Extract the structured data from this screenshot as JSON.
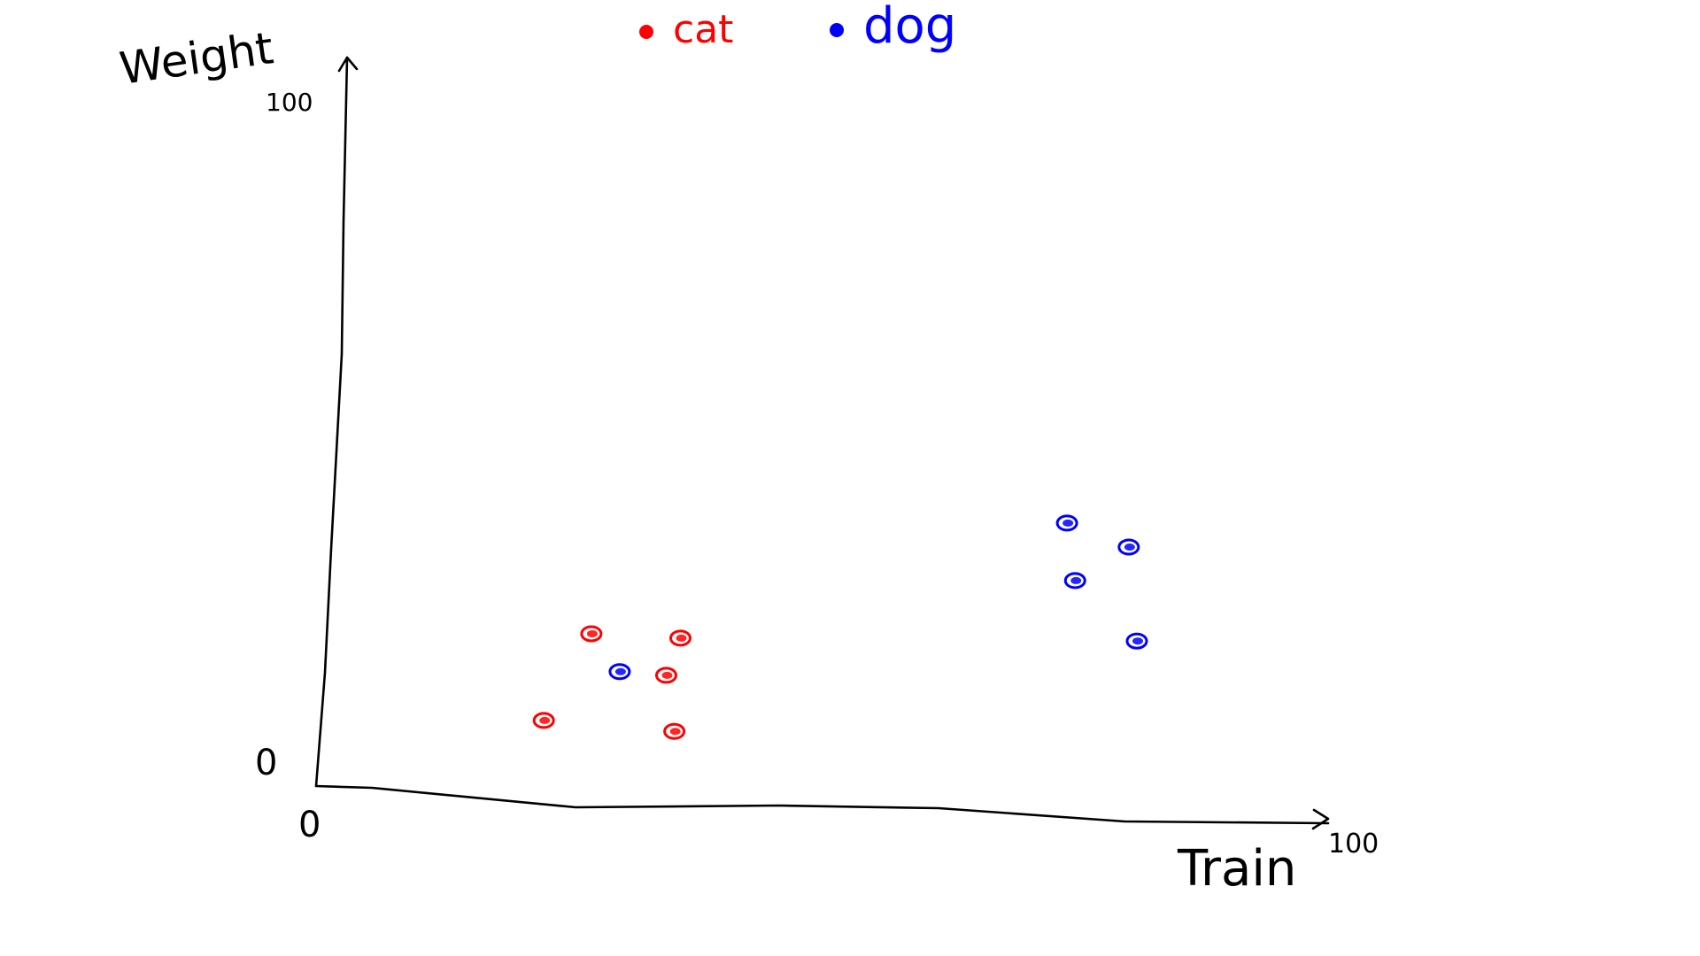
{
  "chart_data": {
    "type": "scatter",
    "title": "",
    "xlabel": "Train",
    "ylabel": "Weight",
    "xlim": [
      0,
      100
    ],
    "ylim": [
      0,
      100
    ],
    "x_ticks": [
      "0",
      "100"
    ],
    "y_ticks": [
      "0",
      "100"
    ],
    "grid": false,
    "legend_position": "top-center",
    "series": [
      {
        "name": "cat",
        "color": "#ff0000",
        "points": [
          {
            "x": 27.2,
            "y": 20.9
          },
          {
            "x": 36.0,
            "y": 20.3
          },
          {
            "x": 34.6,
            "y": 15.2
          },
          {
            "x": 22.5,
            "y": 9.0
          },
          {
            "x": 35.4,
            "y": 7.5
          }
        ]
      },
      {
        "name": "dog",
        "color": "#0000ff",
        "points": [
          {
            "x": 30.0,
            "y": 15.7
          },
          {
            "x": 74.2,
            "y": 36.1
          },
          {
            "x": 80.3,
            "y": 32.8
          },
          {
            "x": 75.0,
            "y": 28.2
          },
          {
            "x": 81.1,
            "y": 19.9
          }
        ]
      }
    ]
  }
}
